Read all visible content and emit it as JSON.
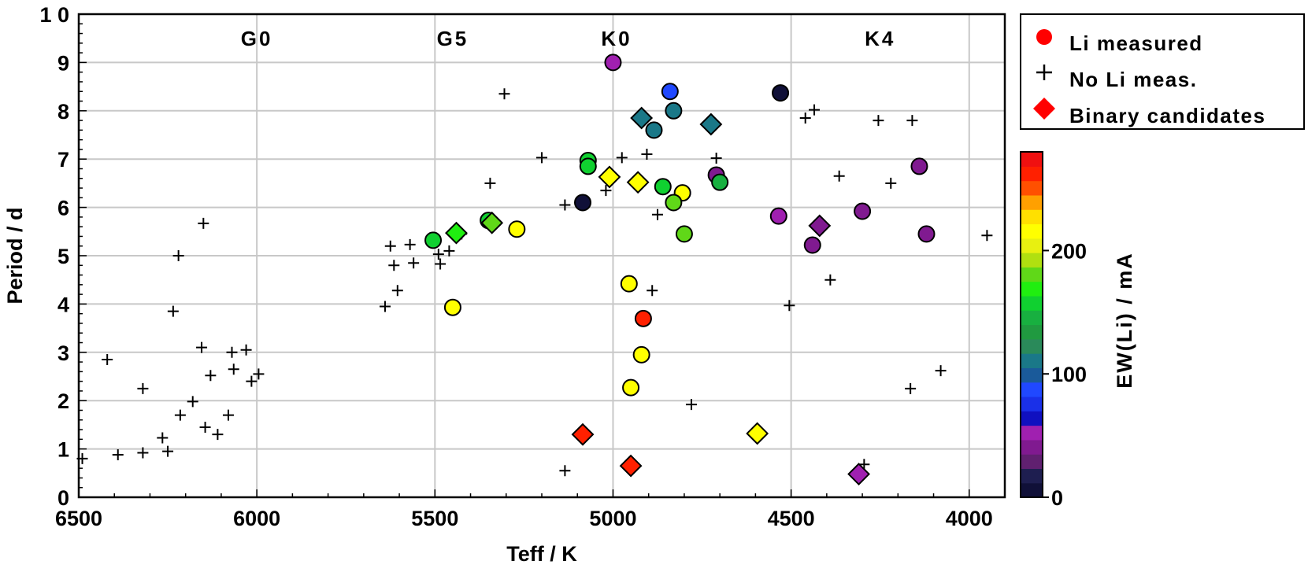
{
  "chart_data": {
    "type": "scatter",
    "xlabel": "Teff / K",
    "ylabel": "Period / d",
    "xlim": [
      6500,
      3900
    ],
    "ylim": [
      0,
      10
    ],
    "x_reversed": true,
    "grid": true,
    "x_ticks": [
      {
        "value": 6500,
        "label": "6500"
      },
      {
        "value": 6000,
        "label": "6000"
      },
      {
        "value": 5500,
        "label": "5500"
      },
      {
        "value": 5000,
        "label": "5000"
      },
      {
        "value": 4500,
        "label": "4500"
      },
      {
        "value": 4000,
        "label": "4000"
      }
    ],
    "y_ticks": [
      {
        "value": 0,
        "label": "0"
      },
      {
        "value": 1,
        "label": "1"
      },
      {
        "value": 2,
        "label": "2"
      },
      {
        "value": 3,
        "label": "3"
      },
      {
        "value": 4,
        "label": "4"
      },
      {
        "value": 5,
        "label": "5"
      },
      {
        "value": 6,
        "label": "6"
      },
      {
        "value": 7,
        "label": "7"
      },
      {
        "value": 8,
        "label": "8"
      },
      {
        "value": 9,
        "label": "9"
      },
      {
        "value": 10,
        "label": "1 0"
      }
    ],
    "spectral_types": [
      {
        "teff": 6000,
        "label": "G0"
      },
      {
        "teff": 5450,
        "label": "G5"
      },
      {
        "teff": 4990,
        "label": "K0"
      },
      {
        "teff": 4250,
        "label": "K4"
      }
    ],
    "legend": {
      "placement": "right-top",
      "entries": [
        {
          "label": "Li measured",
          "marker": "circle",
          "color": "#ff0000"
        },
        {
          "label": "No Li meas.",
          "marker": "plus",
          "color": "#000000"
        },
        {
          "label": "Binary candidates",
          "marker": "diamond",
          "color": "#ff0000"
        }
      ]
    },
    "colorbar": {
      "label": "EW(Li) / mA",
      "range": [
        0,
        280
      ],
      "ticks": [
        {
          "value": 0,
          "label": "0"
        },
        {
          "value": 100,
          "label": "100"
        },
        {
          "value": 200,
          "label": "200"
        }
      ],
      "bands": [
        "#101038",
        "#1e1e50",
        "#602070",
        "#801a90",
        "#a020b0",
        "#1010c0",
        "#1a30e8",
        "#2048ff",
        "#1a5a9a",
        "#1a7888",
        "#2a8a5a",
        "#209a40",
        "#18b040",
        "#10d030",
        "#20ee10",
        "#60d818",
        "#b0e010",
        "#e8f010",
        "#ffff00",
        "#ffe000",
        "#ffa000",
        "#ff5000",
        "#ff2000",
        "#f01010"
      ]
    },
    "series": [
      {
        "name": "Li measured",
        "marker": "circle",
        "points": [
          {
            "x": 5000,
            "y": 9.0,
            "ew": 50
          },
          {
            "x": 4840,
            "y": 8.4,
            "ew": 85
          },
          {
            "x": 4530,
            "y": 8.37,
            "ew": 5
          },
          {
            "x": 4830,
            "y": 8.0,
            "ew": 115
          },
          {
            "x": 4885,
            "y": 7.6,
            "ew": 115
          },
          {
            "x": 5070,
            "y": 6.97,
            "ew": 155
          },
          {
            "x": 5070,
            "y": 6.85,
            "ew": 155
          },
          {
            "x": 4710,
            "y": 6.67,
            "ew": 35
          },
          {
            "x": 4700,
            "y": 6.52,
            "ew": 150
          },
          {
            "x": 4860,
            "y": 6.43,
            "ew": 160
          },
          {
            "x": 4805,
            "y": 6.3,
            "ew": 215
          },
          {
            "x": 4830,
            "y": 6.1,
            "ew": 175
          },
          {
            "x": 5085,
            "y": 6.1,
            "ew": 5
          },
          {
            "x": 4535,
            "y": 5.82,
            "ew": 50
          },
          {
            "x": 5350,
            "y": 5.73,
            "ew": 160
          },
          {
            "x": 5270,
            "y": 5.55,
            "ew": 215
          },
          {
            "x": 4800,
            "y": 5.45,
            "ew": 185
          },
          {
            "x": 5505,
            "y": 5.32,
            "ew": 155
          },
          {
            "x": 4300,
            "y": 5.92,
            "ew": 35
          },
          {
            "x": 4140,
            "y": 6.85,
            "ew": 35
          },
          {
            "x": 4120,
            "y": 5.45,
            "ew": 35
          },
          {
            "x": 4440,
            "y": 5.22,
            "ew": 35
          },
          {
            "x": 5450,
            "y": 3.93,
            "ew": 215
          },
          {
            "x": 4955,
            "y": 4.42,
            "ew": 215
          },
          {
            "x": 4915,
            "y": 3.7,
            "ew": 265
          },
          {
            "x": 4920,
            "y": 2.95,
            "ew": 215
          },
          {
            "x": 4950,
            "y": 2.27,
            "ew": 215
          }
        ]
      },
      {
        "name": "Binary candidates",
        "marker": "diamond",
        "points": [
          {
            "x": 4920,
            "y": 7.85,
            "ew": 115
          },
          {
            "x": 4725,
            "y": 7.72,
            "ew": 115
          },
          {
            "x": 5010,
            "y": 6.63,
            "ew": 215
          },
          {
            "x": 4930,
            "y": 6.52,
            "ew": 215
          },
          {
            "x": 5440,
            "y": 5.47,
            "ew": 165
          },
          {
            "x": 5340,
            "y": 5.68,
            "ew": 180
          },
          {
            "x": 4420,
            "y": 5.62,
            "ew": 35
          },
          {
            "x": 5085,
            "y": 1.3,
            "ew": 265
          },
          {
            "x": 4950,
            "y": 0.65,
            "ew": 265
          },
          {
            "x": 4595,
            "y": 1.32,
            "ew": 215
          },
          {
            "x": 4310,
            "y": 0.48,
            "ew": 50
          }
        ]
      },
      {
        "name": "No Li meas.",
        "marker": "plus",
        "points": [
          {
            "x": 5305,
            "y": 8.35
          },
          {
            "x": 4460,
            "y": 7.85
          },
          {
            "x": 4435,
            "y": 8.02
          },
          {
            "x": 4255,
            "y": 7.8
          },
          {
            "x": 4160,
            "y": 7.8
          },
          {
            "x": 5200,
            "y": 7.03
          },
          {
            "x": 4975,
            "y": 7.03
          },
          {
            "x": 4905,
            "y": 7.1
          },
          {
            "x": 4710,
            "y": 7.02
          },
          {
            "x": 4365,
            "y": 6.65
          },
          {
            "x": 4220,
            "y": 6.5
          },
          {
            "x": 5345,
            "y": 6.5
          },
          {
            "x": 5020,
            "y": 6.35
          },
          {
            "x": 5135,
            "y": 6.05
          },
          {
            "x": 4875,
            "y": 5.85
          },
          {
            "x": 6150,
            "y": 5.67
          },
          {
            "x": 5425,
            "y": 5.45
          },
          {
            "x": 5460,
            "y": 5.1
          },
          {
            "x": 5625,
            "y": 5.2
          },
          {
            "x": 5570,
            "y": 5.23
          },
          {
            "x": 5490,
            "y": 5.03
          },
          {
            "x": 5485,
            "y": 4.83
          },
          {
            "x": 5560,
            "y": 4.85
          },
          {
            "x": 5615,
            "y": 4.8
          },
          {
            "x": 5605,
            "y": 4.28
          },
          {
            "x": 5640,
            "y": 3.95
          },
          {
            "x": 6220,
            "y": 5.0
          },
          {
            "x": 6235,
            "y": 3.85
          },
          {
            "x": 4390,
            "y": 4.5
          },
          {
            "x": 4505,
            "y": 3.97
          },
          {
            "x": 4890,
            "y": 4.28
          },
          {
            "x": 6030,
            "y": 3.05
          },
          {
            "x": 6155,
            "y": 3.1
          },
          {
            "x": 6070,
            "y": 3.0
          },
          {
            "x": 5995,
            "y": 2.55
          },
          {
            "x": 6065,
            "y": 2.65
          },
          {
            "x": 6015,
            "y": 2.4
          },
          {
            "x": 6130,
            "y": 2.52
          },
          {
            "x": 6420,
            "y": 2.85
          },
          {
            "x": 6320,
            "y": 2.25
          },
          {
            "x": 6180,
            "y": 1.98
          },
          {
            "x": 6080,
            "y": 1.7
          },
          {
            "x": 6215,
            "y": 1.7
          },
          {
            "x": 6145,
            "y": 1.45
          },
          {
            "x": 6110,
            "y": 1.3
          },
          {
            "x": 6265,
            "y": 1.23
          },
          {
            "x": 6250,
            "y": 0.95
          },
          {
            "x": 6320,
            "y": 0.92
          },
          {
            "x": 6390,
            "y": 0.88
          },
          {
            "x": 6490,
            "y": 0.8
          },
          {
            "x": 4780,
            "y": 1.92
          },
          {
            "x": 5135,
            "y": 0.55
          },
          {
            "x": 4295,
            "y": 0.68
          },
          {
            "x": 4165,
            "y": 2.25
          },
          {
            "x": 4080,
            "y": 2.62
          },
          {
            "x": 3950,
            "y": 5.42
          }
        ]
      }
    ]
  }
}
